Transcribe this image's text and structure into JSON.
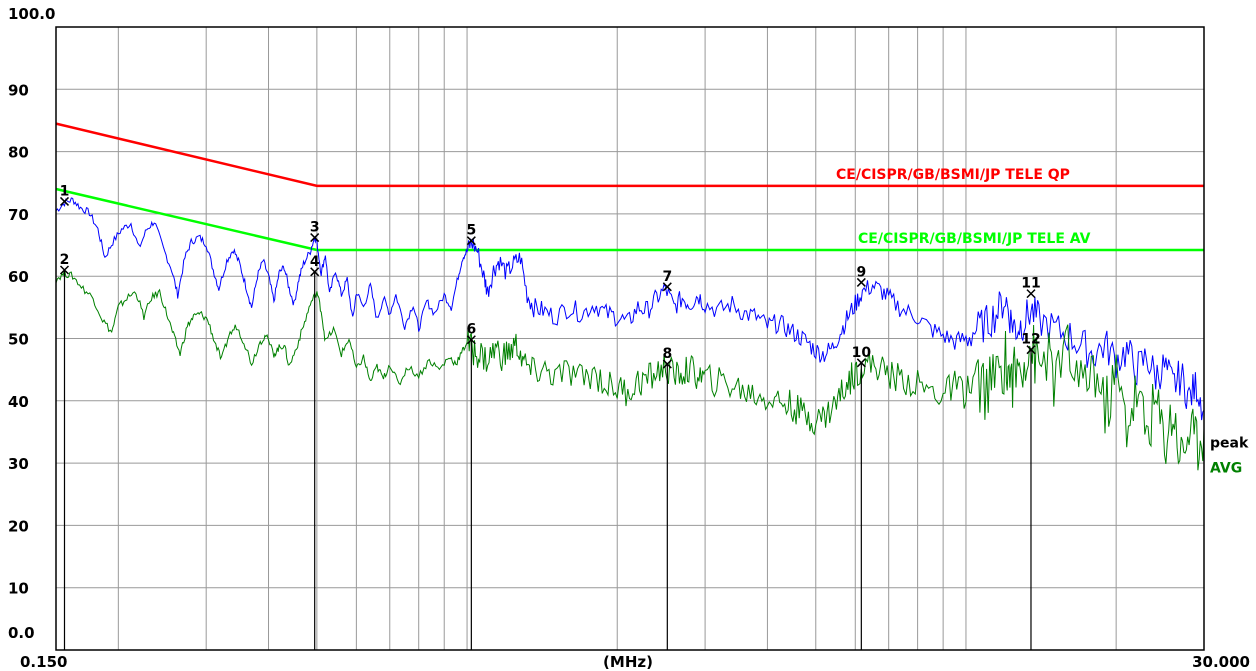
{
  "chart_data": {
    "type": "line",
    "title": "",
    "xlabel": "(MHz)",
    "ylabel": "",
    "x_scale": "log",
    "xlim": [
      0.15,
      30.0
    ],
    "ylim": [
      0,
      100
    ],
    "x_tick_labels": [
      "0.150",
      "30.000"
    ],
    "y_tick_labels": [
      "0.0",
      "10",
      "20",
      "30",
      "40",
      "50",
      "60",
      "70",
      "80",
      "90",
      "100.0"
    ],
    "y_ticks": [
      0,
      10,
      20,
      30,
      40,
      50,
      60,
      70,
      80,
      90,
      100
    ],
    "grid": true,
    "limits": [
      {
        "name": "CE/CISPR/GB/BSMI/JP  TELE QP",
        "color": "#ff0000",
        "points": [
          [
            0.15,
            84.5
          ],
          [
            0.5,
            74.5
          ],
          [
            30.0,
            74.5
          ]
        ]
      },
      {
        "name": "CE/CISPR/GB/BSMI/JP TELE AV",
        "color": "#00ff00",
        "points": [
          [
            0.15,
            74.0
          ],
          [
            0.5,
            64.2
          ],
          [
            30.0,
            64.2
          ]
        ]
      }
    ],
    "series": [
      {
        "name": "peak",
        "color": "#0000ff",
        "points": [
          [
            0.15,
            70.5
          ],
          [
            0.156,
            71.8
          ],
          [
            0.162,
            72.3
          ],
          [
            0.168,
            71.0
          ],
          [
            0.175,
            70.2
          ],
          [
            0.182,
            67.5
          ],
          [
            0.188,
            63.0
          ],
          [
            0.195,
            65.5
          ],
          [
            0.203,
            67.5
          ],
          [
            0.212,
            68.5
          ],
          [
            0.22,
            64.5
          ],
          [
            0.228,
            67.5
          ],
          [
            0.236,
            68.8
          ],
          [
            0.246,
            64.5
          ],
          [
            0.256,
            61.0
          ],
          [
            0.263,
            57.0
          ],
          [
            0.272,
            63.0
          ],
          [
            0.28,
            65.5
          ],
          [
            0.29,
            66.3
          ],
          [
            0.3,
            65.2
          ],
          [
            0.31,
            61.0
          ],
          [
            0.318,
            58.0
          ],
          [
            0.33,
            62.5
          ],
          [
            0.34,
            64.3
          ],
          [
            0.35,
            62.0
          ],
          [
            0.36,
            58.5
          ],
          [
            0.37,
            55.0
          ],
          [
            0.38,
            60.0
          ],
          [
            0.39,
            62.5
          ],
          [
            0.4,
            60.0
          ],
          [
            0.41,
            56.0
          ],
          [
            0.42,
            60.5
          ],
          [
            0.43,
            61.5
          ],
          [
            0.44,
            58.0
          ],
          [
            0.45,
            55.5
          ],
          [
            0.46,
            59.5
          ],
          [
            0.47,
            62.0
          ],
          [
            0.485,
            64.0
          ],
          [
            0.495,
            66.3
          ],
          [
            0.5,
            65.5
          ],
          [
            0.51,
            60.5
          ],
          [
            0.52,
            63.5
          ],
          [
            0.53,
            57.0
          ],
          [
            0.545,
            61.0
          ],
          [
            0.56,
            57.0
          ],
          [
            0.575,
            59.5
          ],
          [
            0.59,
            53.0
          ],
          [
            0.6,
            57.5
          ],
          [
            0.62,
            55.0
          ],
          [
            0.64,
            58.5
          ],
          [
            0.66,
            53.0
          ],
          [
            0.68,
            56.5
          ],
          [
            0.7,
            54.0
          ],
          [
            0.72,
            57.0
          ],
          [
            0.75,
            52.0
          ],
          [
            0.78,
            55.5
          ],
          [
            0.8,
            51.5
          ],
          [
            0.83,
            56.0
          ],
          [
            0.86,
            54.0
          ],
          [
            0.9,
            57.0
          ],
          [
            0.93,
            55.0
          ],
          [
            0.96,
            60.0
          ],
          [
            0.98,
            63.0
          ],
          [
            1.0,
            64.0
          ],
          [
            1.02,
            65.5
          ],
          [
            1.05,
            64.0
          ],
          [
            1.08,
            60.0
          ],
          [
            1.1,
            57.5
          ],
          [
            1.13,
            61.0
          ],
          [
            1.16,
            62.5
          ],
          [
            1.2,
            60.5
          ],
          [
            1.24,
            62.0
          ],
          [
            1.28,
            63.0
          ],
          [
            1.32,
            57.0
          ],
          [
            1.36,
            55.0
          ],
          [
            1.42,
            54.5
          ],
          [
            1.5,
            53.5
          ],
          [
            1.6,
            55.0
          ],
          [
            1.7,
            54.0
          ],
          [
            1.8,
            55.5
          ],
          [
            1.9,
            54.0
          ],
          [
            2.0,
            53.5
          ],
          [
            2.1,
            52.5
          ],
          [
            2.2,
            55.0
          ],
          [
            2.3,
            54.5
          ],
          [
            2.4,
            56.5
          ],
          [
            2.5,
            58.0
          ],
          [
            2.6,
            55.0
          ],
          [
            2.7,
            56.5
          ],
          [
            2.8,
            55.5
          ],
          [
            2.9,
            57.0
          ],
          [
            3.0,
            55.5
          ],
          [
            3.2,
            54.5
          ],
          [
            3.4,
            55.5
          ],
          [
            3.6,
            54.0
          ],
          [
            3.8,
            53.5
          ],
          [
            4.0,
            52.0
          ],
          [
            4.2,
            52.5
          ],
          [
            4.4,
            51.5
          ],
          [
            4.6,
            50.5
          ],
          [
            4.8,
            49.5
          ],
          [
            5.0,
            48.0
          ],
          [
            5.2,
            47.5
          ],
          [
            5.4,
            48.5
          ],
          [
            5.6,
            51.0
          ],
          [
            5.8,
            53.5
          ],
          [
            6.0,
            55.5
          ],
          [
            6.2,
            57.5
          ],
          [
            6.5,
            58.5
          ],
          [
            6.8,
            57.5
          ],
          [
            7.1,
            56.0
          ],
          [
            7.5,
            54.5
          ],
          [
            8.0,
            53.5
          ],
          [
            8.5,
            51.5
          ],
          [
            9.0,
            50.5
          ],
          [
            9.5,
            49.5
          ],
          [
            10.0,
            50.0
          ],
          [
            10.5,
            51.5
          ],
          [
            11.0,
            52.5
          ],
          [
            11.5,
            54.0
          ],
          [
            12.0,
            56.5
          ],
          [
            12.3,
            53.0
          ],
          [
            12.6,
            51.5
          ],
          [
            13.0,
            52.5
          ],
          [
            13.5,
            54.5
          ],
          [
            14.0,
            53.0
          ],
          [
            15.0,
            51.5
          ],
          [
            16.0,
            50.5
          ],
          [
            17.0,
            49.0
          ],
          [
            18.0,
            47.5
          ],
          [
            19.0,
            49.0
          ],
          [
            20.0,
            46.5
          ],
          [
            21.0,
            48.0
          ],
          [
            22.0,
            45.0
          ],
          [
            23.0,
            47.0
          ],
          [
            24.0,
            44.0
          ],
          [
            25.0,
            45.5
          ],
          [
            26.0,
            42.5
          ],
          [
            27.0,
            44.0
          ],
          [
            28.0,
            40.5
          ],
          [
            29.0,
            42.5
          ],
          [
            30.0,
            38.5
          ]
        ]
      },
      {
        "name": "AVG",
        "color": "#008000",
        "points": [
          [
            0.15,
            59.5
          ],
          [
            0.156,
            60.5
          ],
          [
            0.162,
            60.0
          ],
          [
            0.17,
            58.0
          ],
          [
            0.178,
            56.5
          ],
          [
            0.186,
            53.0
          ],
          [
            0.194,
            51.0
          ],
          [
            0.2,
            55.0
          ],
          [
            0.208,
            56.5
          ],
          [
            0.217,
            57.5
          ],
          [
            0.225,
            53.5
          ],
          [
            0.233,
            56.5
          ],
          [
            0.242,
            57.5
          ],
          [
            0.25,
            54.0
          ],
          [
            0.258,
            50.5
          ],
          [
            0.266,
            47.5
          ],
          [
            0.275,
            52.0
          ],
          [
            0.283,
            53.5
          ],
          [
            0.292,
            54.0
          ],
          [
            0.302,
            53.0
          ],
          [
            0.312,
            49.5
          ],
          [
            0.322,
            46.5
          ],
          [
            0.333,
            50.5
          ],
          [
            0.345,
            52.0
          ],
          [
            0.357,
            49.5
          ],
          [
            0.37,
            46.0
          ],
          [
            0.385,
            49.5
          ],
          [
            0.395,
            50.5
          ],
          [
            0.41,
            47.5
          ],
          [
            0.42,
            48.5
          ],
          [
            0.43,
            49.0
          ],
          [
            0.44,
            45.5
          ],
          [
            0.455,
            48.5
          ],
          [
            0.47,
            52.0
          ],
          [
            0.485,
            55.5
          ],
          [
            0.5,
            57.5
          ],
          [
            0.51,
            54.5
          ],
          [
            0.52,
            49.5
          ],
          [
            0.54,
            51.5
          ],
          [
            0.56,
            47.5
          ],
          [
            0.58,
            50.0
          ],
          [
            0.6,
            45.0
          ],
          [
            0.62,
            47.0
          ],
          [
            0.64,
            43.0
          ],
          [
            0.66,
            45.5
          ],
          [
            0.68,
            43.5
          ],
          [
            0.7,
            46.0
          ],
          [
            0.73,
            42.5
          ],
          [
            0.76,
            45.5
          ],
          [
            0.8,
            44.0
          ],
          [
            0.84,
            46.5
          ],
          [
            0.88,
            45.0
          ],
          [
            0.92,
            47.0
          ],
          [
            0.95,
            46.0
          ],
          [
            0.98,
            48.0
          ],
          [
            1.0,
            49.5
          ],
          [
            1.03,
            48.0
          ],
          [
            1.06,
            47.5
          ],
          [
            1.1,
            46.5
          ],
          [
            1.14,
            48.5
          ],
          [
            1.18,
            47.0
          ],
          [
            1.22,
            48.0
          ],
          [
            1.26,
            49.0
          ],
          [
            1.3,
            46.0
          ],
          [
            1.35,
            44.5
          ],
          [
            1.42,
            45.0
          ],
          [
            1.5,
            44.0
          ],
          [
            1.6,
            44.5
          ],
          [
            1.7,
            43.5
          ],
          [
            1.8,
            44.5
          ],
          [
            1.9,
            42.5
          ],
          [
            2.0,
            42.0
          ],
          [
            2.1,
            41.5
          ],
          [
            2.2,
            43.0
          ],
          [
            2.3,
            43.5
          ],
          [
            2.4,
            44.5
          ],
          [
            2.5,
            45.5
          ],
          [
            2.6,
            44.0
          ],
          [
            2.7,
            44.5
          ],
          [
            2.8,
            45.0
          ],
          [
            2.9,
            44.0
          ],
          [
            3.0,
            43.5
          ],
          [
            3.2,
            43.0
          ],
          [
            3.4,
            42.5
          ],
          [
            3.6,
            41.5
          ],
          [
            3.8,
            41.0
          ],
          [
            4.0,
            40.5
          ],
          [
            4.2,
            40.0
          ],
          [
            4.4,
            39.5
          ],
          [
            4.6,
            38.5
          ],
          [
            4.8,
            37.5
          ],
          [
            5.0,
            37.0
          ],
          [
            5.2,
            37.5
          ],
          [
            5.4,
            39.0
          ],
          [
            5.6,
            41.0
          ],
          [
            5.8,
            43.0
          ],
          [
            6.0,
            44.5
          ],
          [
            6.2,
            45.5
          ],
          [
            6.5,
            46.0
          ],
          [
            6.8,
            45.0
          ],
          [
            7.1,
            44.0
          ],
          [
            7.5,
            43.5
          ],
          [
            8.0,
            42.5
          ],
          [
            8.5,
            41.5
          ],
          [
            9.0,
            41.0
          ],
          [
            9.5,
            42.5
          ],
          [
            10.0,
            41.0
          ],
          [
            10.5,
            43.0
          ],
          [
            11.0,
            41.5
          ],
          [
            11.5,
            44.0
          ],
          [
            12.0,
            46.5
          ],
          [
            12.3,
            43.5
          ],
          [
            12.6,
            44.5
          ],
          [
            13.0,
            46.5
          ],
          [
            13.5,
            49.0
          ],
          [
            14.0,
            45.0
          ],
          [
            14.5,
            47.5
          ],
          [
            15.0,
            43.5
          ],
          [
            16.0,
            48.0
          ],
          [
            17.0,
            41.5
          ],
          [
            18.0,
            46.0
          ],
          [
            19.0,
            38.5
          ],
          [
            20.0,
            44.0
          ],
          [
            21.0,
            36.5
          ],
          [
            22.0,
            41.5
          ],
          [
            23.0,
            35.0
          ],
          [
            24.0,
            40.0
          ],
          [
            25.0,
            33.5
          ],
          [
            26.0,
            38.5
          ],
          [
            27.0,
            31.0
          ],
          [
            28.0,
            35.5
          ],
          [
            29.0,
            33.0
          ],
          [
            30.0,
            35.5
          ]
        ]
      }
    ],
    "markers": [
      {
        "label": "1",
        "x": 0.156,
        "y": 72.0
      },
      {
        "label": "2",
        "x": 0.156,
        "y": 61.0
      },
      {
        "label": "3",
        "x": 0.495,
        "y": 66.2
      },
      {
        "label": "4",
        "x": 0.495,
        "y": 60.7
      },
      {
        "label": "5",
        "x": 1.02,
        "y": 65.7
      },
      {
        "label": "6",
        "x": 1.02,
        "y": 49.8
      },
      {
        "label": "7",
        "x": 2.52,
        "y": 58.3
      },
      {
        "label": "8",
        "x": 2.52,
        "y": 45.9
      },
      {
        "label": "9",
        "x": 6.17,
        "y": 59.0
      },
      {
        "label": "10",
        "x": 6.17,
        "y": 46.1
      },
      {
        "label": "11",
        "x": 13.5,
        "y": 57.2
      },
      {
        "label": "12",
        "x": 13.5,
        "y": 48.2
      }
    ]
  }
}
